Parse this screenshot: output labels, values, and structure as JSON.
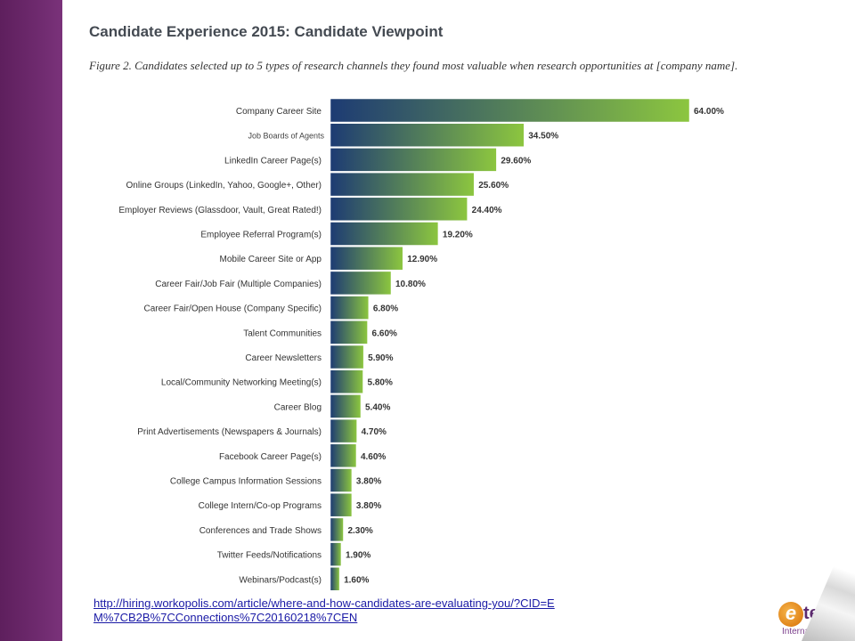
{
  "slide": {
    "title": "Candidate Experience 2015: Candidate Viewpoint",
    "subtitle": "Figure 2. Candidates selected up to 5 types of research channels they found most valuable when research opportunities at [company name].",
    "source_url": "http://hiring.workopolis.com/article/where-and-how-candidates-are-evaluating-you/?CID=EM%7CB2B%7CConnections%7C20160218%7CEN",
    "logo": {
      "mark": "e",
      "name": "teach",
      "tagline": "International"
    }
  },
  "chart_data": {
    "type": "bar",
    "orientation": "horizontal",
    "title": "",
    "xlabel": "",
    "ylabel": "",
    "xlim": [
      0,
      64
    ],
    "grid": false,
    "legend": "none",
    "colors": {
      "bar_start": "#1d3b73",
      "bar_end": "#8cc63f",
      "border": "#ffffff"
    },
    "overlay_label": "Job Boards of Agents",
    "categories": [
      "Company Career Site",
      "",
      "LinkedIn Career Page(s)",
      "Online Groups (LinkedIn, Yahoo, Google+, Other)",
      "Employer Reviews (Glassdoor, Vault, Great Rated!)",
      "Employee Referral Program(s)",
      "Mobile Career Site or App",
      "Career Fair/Job Fair (Multiple Companies)",
      "Career Fair/Open House (Company Specific)",
      "Talent Communities",
      "Career Newsletters",
      "Local/Community Networking Meeting(s)",
      "Career Blog",
      "Print Advertisements (Newspapers & Journals)",
      "Facebook Career Page(s)",
      "College Campus Information Sessions",
      "College Intern/Co-op Programs",
      "Conferences and Trade Shows",
      "Twitter Feeds/Notifications",
      "Webinars/Podcast(s)"
    ],
    "values": [
      64.0,
      34.5,
      29.6,
      25.6,
      24.4,
      19.2,
      12.9,
      10.8,
      6.8,
      6.6,
      5.9,
      5.8,
      5.4,
      4.7,
      4.6,
      3.8,
      3.8,
      2.3,
      1.9,
      1.6
    ],
    "value_labels": [
      "64.00%",
      "34.50%",
      "29.60%",
      "25.60%",
      "24.40%",
      "19.20%",
      "12.90%",
      "10.80%",
      "6.80%",
      "6.60%",
      "5.90%",
      "5.80%",
      "5.40%",
      "4.70%",
      "4.60%",
      "3.80%",
      "3.80%",
      "2.30%",
      "1.90%",
      "1.60%"
    ]
  }
}
